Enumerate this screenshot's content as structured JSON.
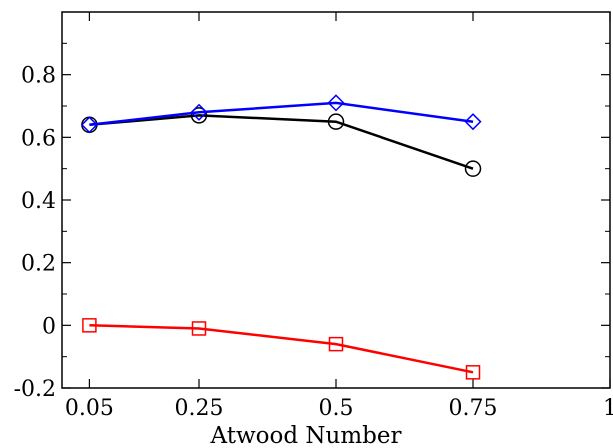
{
  "chart_data": {
    "type": "line",
    "title": "",
    "xlabel": "Atwood Number",
    "ylabel": "",
    "xlim": [
      0,
      1
    ],
    "ylim": [
      -0.2,
      1.0
    ],
    "x_ticks": [
      0.05,
      0.25,
      0.5,
      0.75,
      1
    ],
    "x_tick_labels": [
      "0.05",
      "0.25",
      "0.5",
      "0.75",
      "1"
    ],
    "y_ticks": [
      -0.2,
      0,
      0.2,
      0.4,
      0.6,
      0.8
    ],
    "y_tick_labels": [
      "-0.2",
      "0",
      "0.2",
      "0.4",
      "0.6",
      "0.8"
    ],
    "grid": false,
    "legend": "none",
    "series": [
      {
        "color": "#000000",
        "marker": "circle",
        "x": [
          0.05,
          0.25,
          0.5,
          0.75
        ],
        "y": [
          0.64,
          0.67,
          0.65,
          0.5
        ]
      },
      {
        "color": "#0000ff",
        "marker": "diamond",
        "x": [
          0.05,
          0.25,
          0.5,
          0.75
        ],
        "y": [
          0.64,
          0.68,
          0.71,
          0.65
        ]
      },
      {
        "color": "#ff0000",
        "marker": "square",
        "x": [
          0.05,
          0.25,
          0.5,
          0.75
        ],
        "y": [
          0.0,
          -0.01,
          -0.06,
          -0.15
        ]
      }
    ]
  }
}
